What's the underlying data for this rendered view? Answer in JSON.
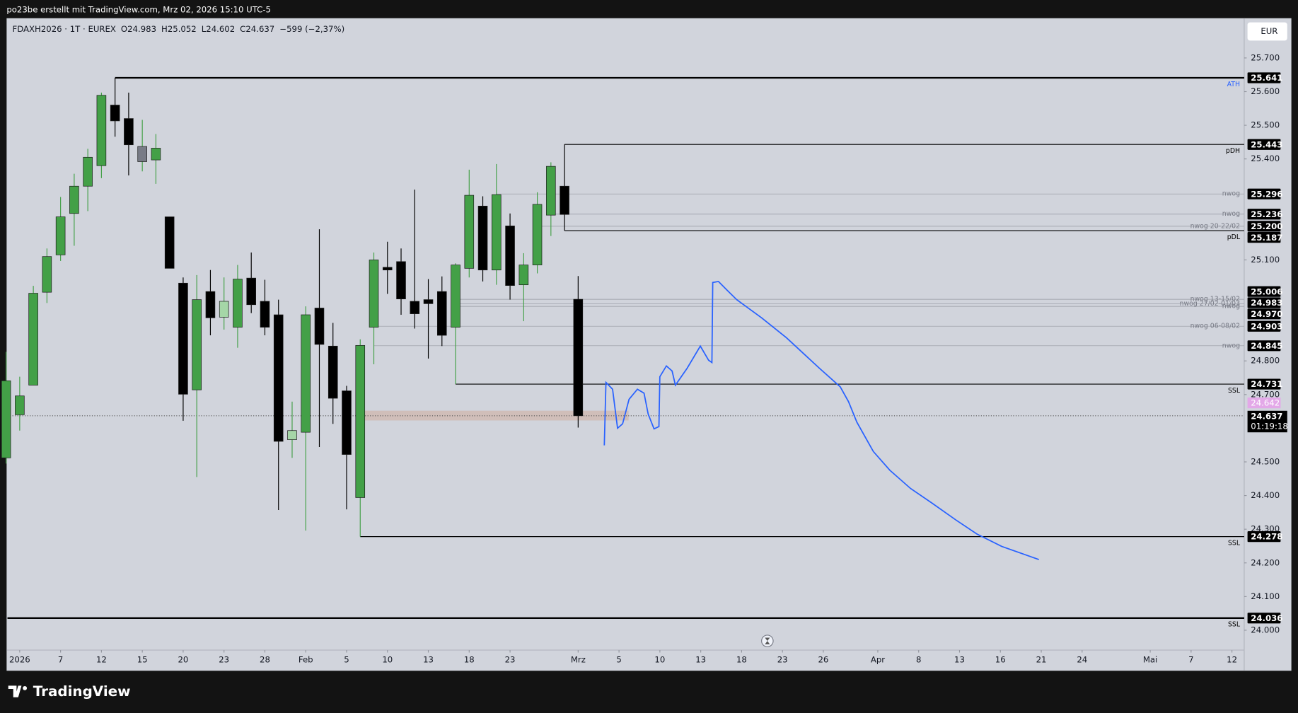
{
  "header": {
    "text": "po23be erstellt mit TradingView.com, Mrz 02, 2026 15:10 UTC-5",
    "logo": "TradingView"
  },
  "chart_data": {
    "type": "candlestick",
    "title": "FDAXH2026 · 1T · EUREX",
    "ohlc_letters": [
      "O",
      "H",
      "L",
      "C"
    ],
    "change": "−599 (−2,37%)",
    "currency": "EUR",
    "x": [
      0,
      1,
      2,
      3,
      4,
      5,
      6,
      7,
      8,
      9,
      10,
      11,
      12,
      13,
      14,
      15,
      16,
      17,
      18,
      19,
      20,
      21,
      22,
      23,
      24,
      25,
      26,
      27,
      28,
      29,
      30,
      31,
      32,
      33,
      34,
      35,
      36,
      37,
      38,
      39,
      40,
      41,
      42
    ],
    "open": [
      24.512,
      24.64,
      24.728,
      25.004,
      25.115,
      25.238,
      25.319,
      25.38,
      25.56,
      25.52,
      25.437,
      25.397,
      25.228,
      25.031,
      24.714,
      25.006,
      24.93,
      24.9,
      25.046,
      24.977,
      24.937,
      24.566,
      24.588,
      24.957,
      24.844,
      24.711,
      24.394,
      24.9,
      25.078,
      25.095,
      24.977,
      24.982,
      25.006,
      24.9,
      25.075,
      25.26,
      25.07,
      25.201,
      25.026,
      25.085,
      25.233,
      25.319,
      24.983
    ],
    "high": [
      24.827,
      24.753,
      25.023,
      25.134,
      25.287,
      25.356,
      25.43,
      25.597,
      25.641,
      25.597,
      25.516,
      25.474,
      25.228,
      25.048,
      25.055,
      25.07,
      25.048,
      25.085,
      25.122,
      25.041,
      24.982,
      24.679,
      24.962,
      25.191,
      24.913,
      24.726,
      24.864,
      25.122,
      25.154,
      25.134,
      25.309,
      25.043,
      25.051,
      25.09,
      25.368,
      25.289,
      25.385,
      25.238,
      25.12,
      25.301,
      25.39,
      25.443,
      25.052
    ],
    "low": [
      24.495,
      24.593,
      24.728,
      24.972,
      25.097,
      25.142,
      25.245,
      25.343,
      25.466,
      25.351,
      25.363,
      25.326,
      25.075,
      24.622,
      24.455,
      24.876,
      24.893,
      24.839,
      24.942,
      24.876,
      24.357,
      24.512,
      24.296,
      24.544,
      24.613,
      24.359,
      24.278,
      24.79,
      24.999,
      24.937,
      24.896,
      24.807,
      24.844,
      24.731,
      25.048,
      25.036,
      25.026,
      24.982,
      24.918,
      25.06,
      25.171,
      25.187,
      24.602
    ],
    "close": [
      24.741,
      24.696,
      25.001,
      25.11,
      25.228,
      25.319,
      25.405,
      25.589,
      25.513,
      25.442,
      25.392,
      25.432,
      25.075,
      24.701,
      24.982,
      24.928,
      24.977,
      25.043,
      24.967,
      24.9,
      24.561,
      24.593,
      24.937,
      24.849,
      24.689,
      24.522,
      24.846,
      25.1,
      25.07,
      24.984,
      24.94,
      24.97,
      24.876,
      25.085,
      25.292,
      25.07,
      25.294,
      25.024,
      25.085,
      25.265,
      25.378,
      25.235,
      24.637
    ],
    "up_color": "#43a047",
    "down_color": "#000000",
    "color_overrides": [
      {
        "index": 10,
        "color": "#787b86"
      },
      {
        "index": 16,
        "color": "#a5d6a7"
      },
      {
        "index": 21,
        "color": "#a5d6a7"
      }
    ],
    "xlim": [
      0.1,
      90.9
    ],
    "xticks": [
      {
        "value": 1,
        "label": "2026"
      },
      {
        "value": 4,
        "label": "7"
      },
      {
        "value": 7,
        "label": "12"
      },
      {
        "value": 10,
        "label": "15"
      },
      {
        "value": 13,
        "label": "20"
      },
      {
        "value": 16,
        "label": "23"
      },
      {
        "value": 19,
        "label": "28"
      },
      {
        "value": 22,
        "label": "Feb"
      },
      {
        "value": 25,
        "label": "5"
      },
      {
        "value": 28,
        "label": "10"
      },
      {
        "value": 31,
        "label": "13"
      },
      {
        "value": 34,
        "label": "18"
      },
      {
        "value": 37,
        "label": "23"
      },
      {
        "value": 42,
        "label": "Mrz"
      },
      {
        "value": 45,
        "label": "5"
      },
      {
        "value": 48,
        "label": "10"
      },
      {
        "value": 51,
        "label": "13"
      },
      {
        "value": 54,
        "label": "18"
      },
      {
        "value": 57,
        "label": "23"
      },
      {
        "value": 60,
        "label": "26"
      },
      {
        "value": 64,
        "label": "Apr"
      },
      {
        "value": 67,
        "label": "8"
      },
      {
        "value": 70,
        "label": "13"
      },
      {
        "value": 73,
        "label": "16"
      },
      {
        "value": 76,
        "label": "21"
      },
      {
        "value": 79,
        "label": "24"
      },
      {
        "value": 84,
        "label": "Mai"
      },
      {
        "value": 87,
        "label": "7"
      },
      {
        "value": 90,
        "label": "12"
      }
    ],
    "ylim": [
      23.941,
      25.818
    ],
    "yticks": [
      {
        "value": 25.7,
        "label": "25.700"
      },
      {
        "value": 25.6,
        "label": "25.600"
      },
      {
        "value": 25.5,
        "label": "25.500"
      },
      {
        "value": 25.4,
        "label": "25.400"
      },
      {
        "value": 25.1,
        "label": "25.100"
      },
      {
        "value": 24.8,
        "label": "24.800"
      },
      {
        "value": 24.7,
        "label": "24.700"
      },
      {
        "value": 24.5,
        "label": "24.500"
      },
      {
        "value": 24.4,
        "label": "24.400"
      },
      {
        "value": 24.3,
        "label": "24.300"
      },
      {
        "value": 24.2,
        "label": "24.200"
      },
      {
        "value": 24.1,
        "label": "24.100"
      },
      {
        "value": 24.0,
        "label": "24.000"
      }
    ],
    "levels": [
      {
        "value": 25.641,
        "name": "ATH",
        "name_color": "#2962ff",
        "price_label": "25.641",
        "color": "#000000",
        "width": 2,
        "from": 8
      },
      {
        "value": 25.443,
        "name": "pDH",
        "price_label": "25.443",
        "color": "#000000",
        "width": 1,
        "from": 41
      },
      {
        "value": 25.296,
        "name": "nwog",
        "price_label": "25.296",
        "color": "#9598a1",
        "width": 0.6,
        "from": 36
      },
      {
        "value": 25.236,
        "name": "nwog",
        "price_label": "25.236",
        "color": "#9598a1",
        "width": 0.6,
        "from": 40
      },
      {
        "value": 25.2,
        "name": "nwog 20-22/02",
        "price_label": "25.200",
        "color": "#9598a1",
        "width": 0.6,
        "from": 39
      },
      {
        "value": 25.187,
        "name": "pDL",
        "price_label": "25.187",
        "color": "#000000",
        "width": 1,
        "from": 41
      },
      {
        "value": 25.006,
        "price_label": "25.006"
      },
      {
        "value": 24.983,
        "name": "nwog 13-15/02",
        "price_label": "24.983",
        "color": "#9598a1",
        "width": 0.6,
        "from": 33
      },
      {
        "value": 24.97,
        "name": "nwog 27/02-01/03",
        "price_label": "24.970",
        "color": "#9598a1",
        "width": 0.6,
        "from": 33
      },
      {
        "value": 24.962,
        "name": "nwog",
        "color": "#9598a1",
        "width": 0.6,
        "from": 33
      },
      {
        "value": 24.903,
        "name": "nwog 06-08/02",
        "price_label": "24.903",
        "color": "#9598a1",
        "width": 0.6,
        "from": 27
      },
      {
        "value": 24.845,
        "name": "nwog",
        "price_label": "24.845",
        "color": "#9598a1",
        "width": 0.6,
        "from": 27
      },
      {
        "value": 24.731,
        "name": "SSL",
        "price_label": "24.731",
        "color": "#000000",
        "width": 1,
        "from": 33
      },
      {
        "value": 24.278,
        "name": "SSL",
        "price_label": "24.278",
        "color": "#000000",
        "width": 1,
        "from": 26
      },
      {
        "value": 24.036,
        "name": "SSL",
        "price_label": "24.036",
        "color": "#000000",
        "width": 2,
        "from": 0.1
      }
    ],
    "zone": {
      "x": [
        26.3,
        45.7
      ],
      "y": [
        24.623,
        24.652
      ],
      "color": "rgba(205,150,120,0.35)"
    },
    "marker": {
      "value": 24.642,
      "color": "#e3a8e8"
    },
    "countdown": "01:19:18",
    "drawing": {
      "color": "#2962ff",
      "x": [
        43.92,
        44.04,
        44.53,
        44.89,
        45.26,
        45.74,
        46.35,
        46.84,
        47.14,
        47.57,
        47.93,
        48.0,
        48.48,
        48.9,
        49.14,
        50.0,
        50.97,
        51.58,
        51.82,
        51.88,
        52.3,
        52.91,
        53.64,
        55.47,
        57.29,
        59.72,
        61.24,
        61.85,
        62.46,
        63.67,
        64.89,
        66.41,
        67.93,
        69.75,
        71.27,
        73.09,
        75.83
      ],
      "y": [
        24.549,
        24.736,
        24.716,
        24.6,
        24.613,
        24.686,
        24.716,
        24.704,
        24.642,
        24.598,
        24.605,
        24.753,
        24.785,
        24.77,
        24.728,
        24.778,
        24.844,
        24.802,
        24.795,
        25.033,
        25.036,
        25.011,
        24.982,
        24.928,
        24.869,
        24.778,
        24.723,
        24.679,
        24.618,
        24.531,
        24.475,
        24.421,
        24.379,
        24.327,
        24.286,
        24.249,
        24.21
      ]
    }
  }
}
